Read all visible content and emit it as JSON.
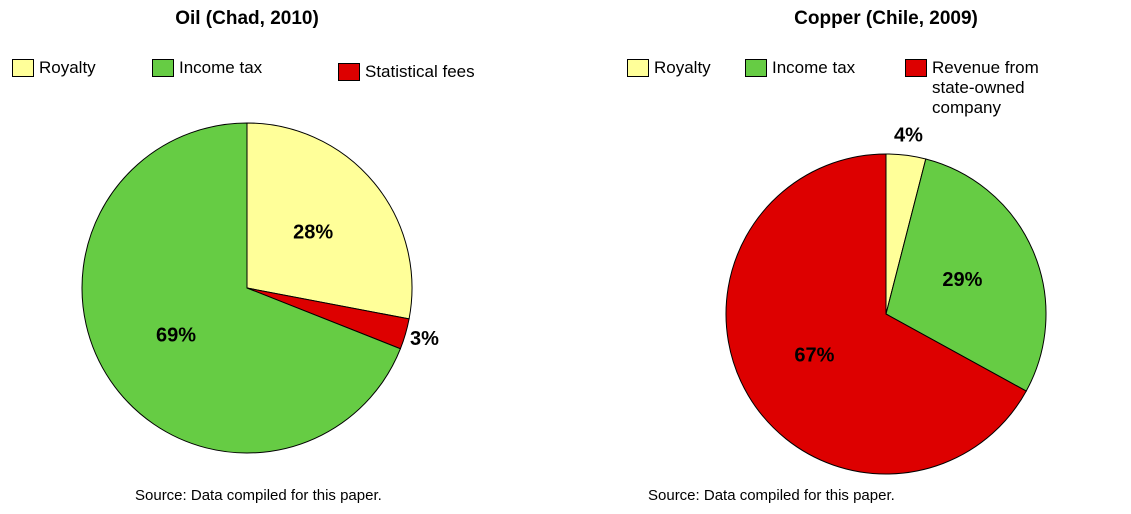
{
  "chart_data": [
    {
      "type": "pie",
      "title": "Oil (Chad, 2010)",
      "categories": [
        "Royalty",
        "Income tax",
        "Statistical fees"
      ],
      "values": [
        28,
        69,
        3
      ],
      "value_labels": [
        "28%",
        "69%",
        "3%"
      ],
      "colors": [
        "#ffff99",
        "#66cc44",
        "#dd0000"
      ],
      "source": "Source: Data compiled for this paper."
    },
    {
      "type": "pie",
      "title": "Copper (Chile, 2009)",
      "categories": [
        "Royalty",
        "Income tax",
        "Revenue from state-owned company"
      ],
      "values": [
        4,
        29,
        67
      ],
      "value_labels": [
        "4%",
        "29%",
        "67%"
      ],
      "colors": [
        "#ffff99",
        "#66cc44",
        "#dd0000"
      ],
      "source": "Source: Data compiled for this paper."
    }
  ]
}
